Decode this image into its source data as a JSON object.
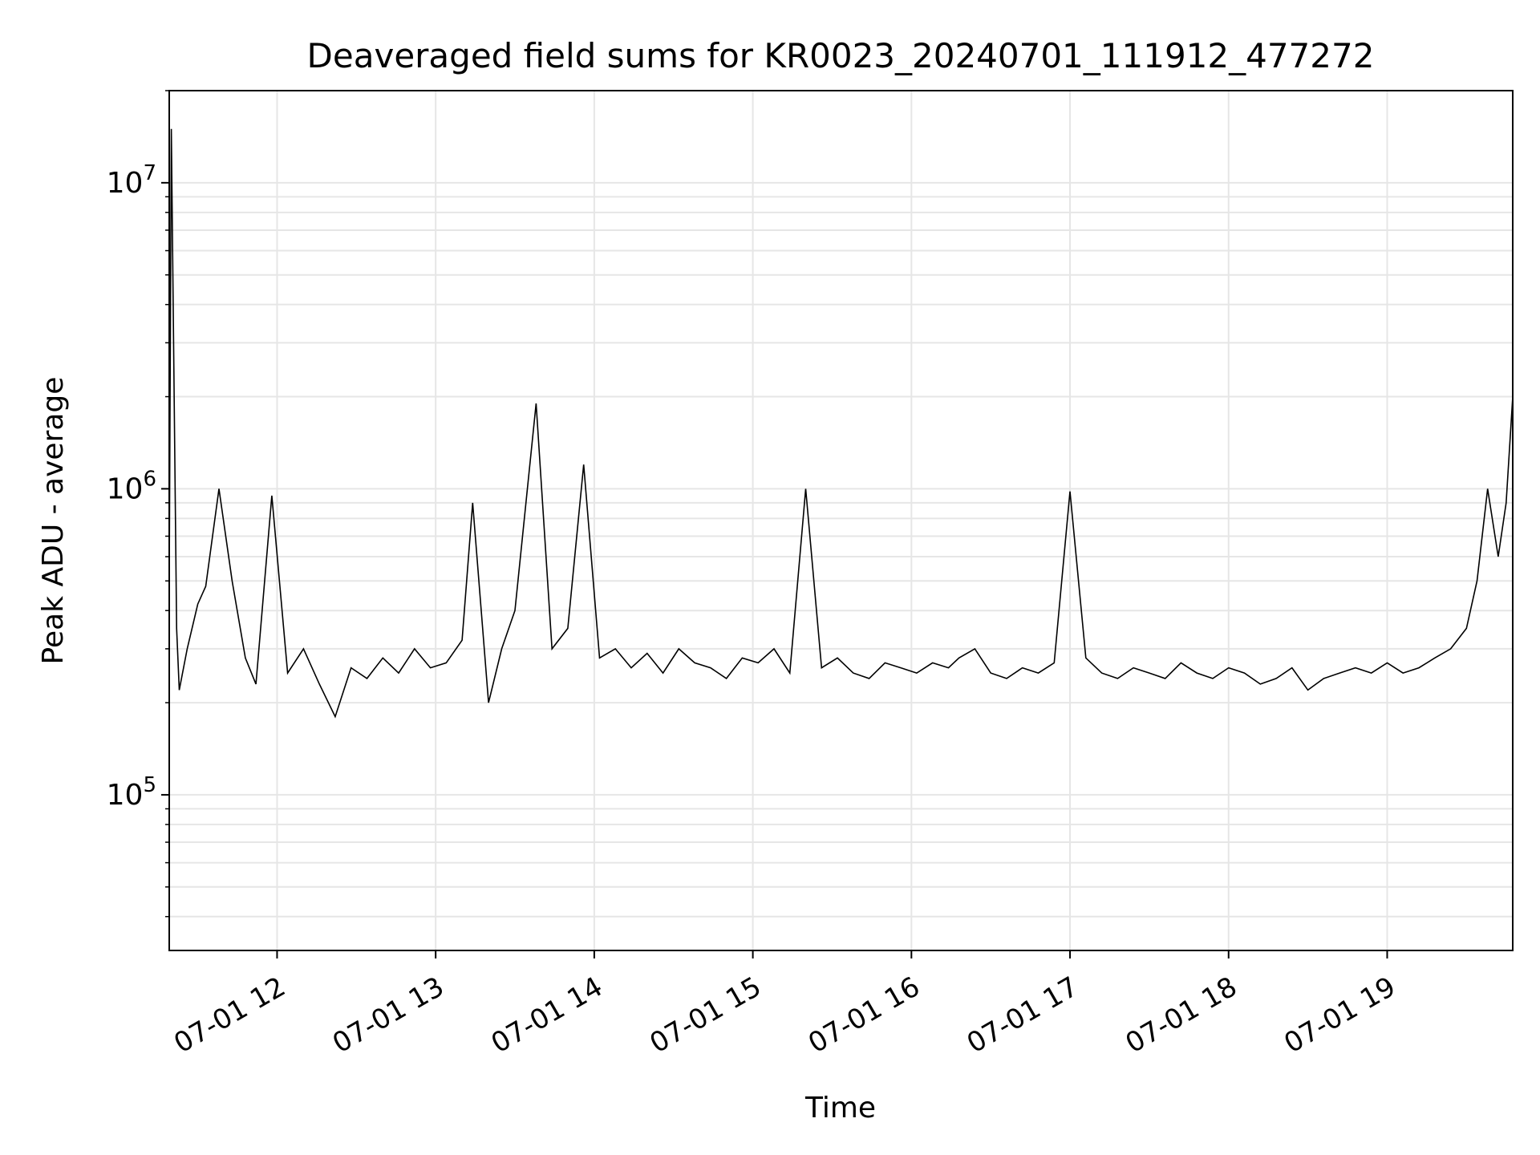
{
  "chart_data": {
    "type": "line",
    "title": "Deaveraged field sums for KR0023_20240701_111912_477272",
    "xlabel": "Time",
    "ylabel": "Peak ADU - average",
    "yscale": "log",
    "xlim": [
      "2024-07-01 11:19:12",
      "2024-07-01 19:47:30"
    ],
    "ylim": [
      31000,
      20000000
    ],
    "x_ticks": [
      "07-01 12",
      "07-01 13",
      "07-01 14",
      "07-01 15",
      "07-01 16",
      "07-01 17",
      "07-01 18",
      "07-01 19"
    ],
    "y_ticks": [
      {
        "base": "10",
        "exp": "5",
        "value": 100000
      },
      {
        "base": "10",
        "exp": "6",
        "value": 1000000
      },
      {
        "base": "10",
        "exp": "7",
        "value": 10000000
      }
    ],
    "grid": true,
    "colors": {
      "line": "#000000",
      "grid": "#e6e6e6",
      "axes": "#000000"
    },
    "series": [
      {
        "x": [
          "2024-07-01 11:19:12",
          "2024-07-01 11:20:00",
          "2024-07-01 11:22:00",
          "2024-07-01 11:23:00",
          "2024-07-01 11:26:00",
          "2024-07-01 11:30:00",
          "2024-07-01 11:33:00",
          "2024-07-01 11:38:00",
          "2024-07-01 11:43:00",
          "2024-07-01 11:48:00",
          "2024-07-01 11:52:00",
          "2024-07-01 11:58:00",
          "2024-07-01 12:04:00",
          "2024-07-01 12:10:00",
          "2024-07-01 12:16:00",
          "2024-07-01 12:22:00",
          "2024-07-01 12:28:00",
          "2024-07-01 12:34:00",
          "2024-07-01 12:40:00",
          "2024-07-01 12:46:00",
          "2024-07-01 12:52:00",
          "2024-07-01 12:58:00",
          "2024-07-01 13:04:00",
          "2024-07-01 13:10:00",
          "2024-07-01 13:14:00",
          "2024-07-01 13:20:00",
          "2024-07-01 13:25:00",
          "2024-07-01 13:30:00",
          "2024-07-01 13:38:00",
          "2024-07-01 13:44:00",
          "2024-07-01 13:50:00",
          "2024-07-01 13:56:00",
          "2024-07-01 14:02:00",
          "2024-07-01 14:08:00",
          "2024-07-01 14:14:00",
          "2024-07-01 14:20:00",
          "2024-07-01 14:26:00",
          "2024-07-01 14:32:00",
          "2024-07-01 14:38:00",
          "2024-07-01 14:44:00",
          "2024-07-01 14:50:00",
          "2024-07-01 14:56:00",
          "2024-07-01 15:02:00",
          "2024-07-01 15:08:00",
          "2024-07-01 15:14:00",
          "2024-07-01 15:20:00",
          "2024-07-01 15:26:00",
          "2024-07-01 15:32:00",
          "2024-07-01 15:38:00",
          "2024-07-01 15:44:00",
          "2024-07-01 15:50:00",
          "2024-07-01 15:56:00",
          "2024-07-01 16:02:00",
          "2024-07-01 16:08:00",
          "2024-07-01 16:14:00",
          "2024-07-01 16:18:00",
          "2024-07-01 16:24:00",
          "2024-07-01 16:30:00",
          "2024-07-01 16:36:00",
          "2024-07-01 16:42:00",
          "2024-07-01 16:48:00",
          "2024-07-01 16:54:00",
          "2024-07-01 17:00:00",
          "2024-07-01 17:06:00",
          "2024-07-01 17:12:00",
          "2024-07-01 17:18:00",
          "2024-07-01 17:24:00",
          "2024-07-01 17:30:00",
          "2024-07-01 17:36:00",
          "2024-07-01 17:42:00",
          "2024-07-01 17:48:00",
          "2024-07-01 17:54:00",
          "2024-07-01 18:00:00",
          "2024-07-01 18:06:00",
          "2024-07-01 18:12:00",
          "2024-07-01 18:18:00",
          "2024-07-01 18:24:00",
          "2024-07-01 18:30:00",
          "2024-07-01 18:36:00",
          "2024-07-01 18:42:00",
          "2024-07-01 18:48:00",
          "2024-07-01 18:54:00",
          "2024-07-01 19:00:00",
          "2024-07-01 19:06:00",
          "2024-07-01 19:12:00",
          "2024-07-01 19:18:00",
          "2024-07-01 19:24:00",
          "2024-07-01 19:30:00",
          "2024-07-01 19:34:00",
          "2024-07-01 19:38:00",
          "2024-07-01 19:42:00",
          "2024-07-01 19:45:00",
          "2024-07-01 19:47:30"
        ],
        "y": [
          500000,
          15000000,
          350000,
          220000,
          300000,
          420000,
          480000,
          1000000,
          500000,
          280000,
          230000,
          950000,
          250000,
          300000,
          230000,
          180000,
          260000,
          240000,
          280000,
          250000,
          300000,
          260000,
          270000,
          320000,
          900000,
          200000,
          300000,
          400000,
          1900000,
          300000,
          350000,
          1200000,
          280000,
          300000,
          260000,
          290000,
          250000,
          300000,
          270000,
          260000,
          240000,
          280000,
          270000,
          300000,
          250000,
          1000000,
          260000,
          280000,
          250000,
          240000,
          270000,
          260000,
          250000,
          270000,
          260000,
          280000,
          300000,
          250000,
          240000,
          260000,
          250000,
          270000,
          980000,
          280000,
          250000,
          240000,
          260000,
          250000,
          240000,
          270000,
          250000,
          240000,
          260000,
          250000,
          230000,
          240000,
          260000,
          220000,
          240000,
          250000,
          260000,
          250000,
          270000,
          250000,
          260000,
          280000,
          300000,
          350000,
          500000,
          1000000,
          600000,
          900000,
          2000000
        ]
      }
    ]
  }
}
